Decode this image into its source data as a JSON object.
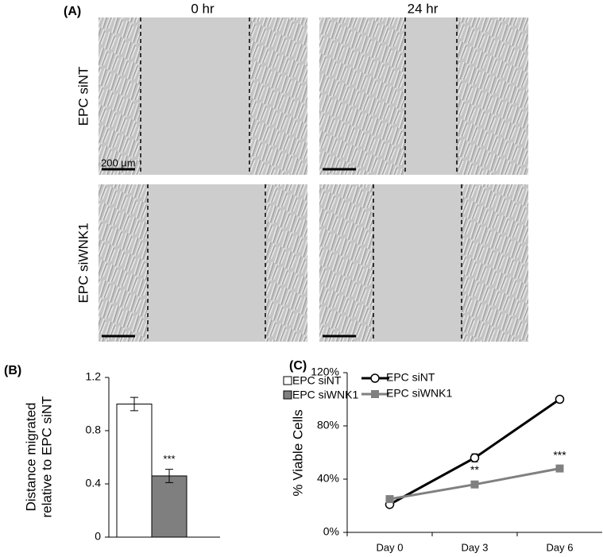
{
  "panel_a": {
    "label": "(A)",
    "columns": [
      "0 hr",
      "24 hr"
    ],
    "rows": [
      "EPC siNT",
      "EPC siWNK1"
    ],
    "scale_bar": "200 µm"
  },
  "chart_data": [
    {
      "type": "bar",
      "label": "(B)",
      "ylabel": [
        "Distance migrated",
        "relative to EPC siNT"
      ],
      "categories": [
        null
      ],
      "series": [
        {
          "name": "EPC siNT",
          "color": "#ffffff",
          "values": [
            1.0
          ],
          "errors": [
            0.05
          ],
          "annotations": [
            null
          ]
        },
        {
          "name": "EPC siWNK1",
          "color": "#7f7f7f",
          "values": [
            0.46
          ],
          "errors": [
            0.05
          ],
          "annotations": [
            "***"
          ]
        }
      ],
      "ylim": [
        0,
        1.2
      ],
      "yticks": [
        0,
        0.4,
        0.8,
        1.2
      ],
      "legend": "top-right"
    },
    {
      "type": "line",
      "label": "(C)",
      "ylabel": "% Viable Cells",
      "categories": [
        "Day 0",
        "Day 3",
        "Day 6"
      ],
      "series": [
        {
          "name": "EPC siNT",
          "color": "#000000",
          "marker": "circle",
          "values": [
            21,
            56,
            100
          ],
          "errors": [
            2,
            3,
            1
          ],
          "annotations": [
            null,
            null,
            null
          ]
        },
        {
          "name": "EPC siWNK1",
          "color": "#808080",
          "marker": "square",
          "values": [
            25,
            36,
            48
          ],
          "errors": [
            2,
            2,
            1
          ],
          "annotations": [
            null,
            "**",
            "***"
          ]
        }
      ],
      "ylim": [
        0,
        120
      ],
      "yticks": [
        {
          "value": 0,
          "label": "0%"
        },
        {
          "value": 40,
          "label": "40%"
        },
        {
          "value": 80,
          "label": "80%"
        },
        {
          "value": 120,
          "label": "120%"
        }
      ],
      "legend": "top-left"
    }
  ]
}
